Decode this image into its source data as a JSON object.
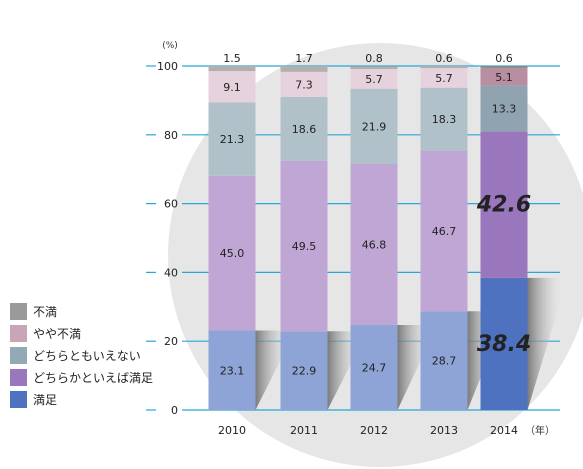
{
  "chart_data": {
    "type": "bar",
    "stacked": true,
    "y_unit_label": "(%)",
    "x_unit_label": "（年）",
    "ylim": [
      0,
      100
    ],
    "y_ticks": [
      "0",
      "20",
      "40",
      "60",
      "80",
      "100"
    ],
    "grid": true,
    "legend_placement": "left",
    "categories": [
      "2010",
      "2011",
      "2012",
      "2013",
      "2014"
    ],
    "series": [
      {
        "name": "満足",
        "color": "#8fa4d6",
        "highlight_color": "#4f72c0",
        "values": [
          23.1,
          22.9,
          24.7,
          28.7,
          38.4
        ],
        "labels": [
          "23.1",
          "22.9",
          "24.7",
          "28.7",
          "38.4"
        ]
      },
      {
        "name": "どちらかといえば満足",
        "color": "#c0a6d4",
        "highlight_color": "#9a76bd",
        "values": [
          45.0,
          49.5,
          46.8,
          46.7,
          42.6
        ],
        "labels": [
          "45.0",
          "49.5",
          "46.8",
          "46.7",
          "42.6"
        ]
      },
      {
        "name": "どちらともいえない",
        "color": "#b1c1c9",
        "highlight_color": "#8fa3b0",
        "values": [
          21.3,
          18.6,
          21.9,
          18.3,
          13.3
        ],
        "labels": [
          "21.3",
          "18.6",
          "21.9",
          "18.3",
          "13.3"
        ]
      },
      {
        "name": "やや不満",
        "color": "#e6d2dc",
        "highlight_color": "#b88fa1",
        "values": [
          9.1,
          7.3,
          5.7,
          5.7,
          5.1
        ],
        "labels": [
          "9.1",
          "7.3",
          "5.7",
          "5.7",
          "5.1"
        ]
      },
      {
        "name": "不満",
        "color": "#b0b0b0",
        "highlight_color": "#8c8c8c",
        "values": [
          1.5,
          1.7,
          0.8,
          0.6,
          0.6
        ],
        "labels": [
          "1.5",
          "1.7",
          "0.8",
          "0.6",
          "0.6"
        ]
      }
    ],
    "legend": [
      {
        "label": "不満",
        "color": "#9a9a9a"
      },
      {
        "label": "やや不満",
        "color": "#c8a6b8"
      },
      {
        "label": "どちらともいえない",
        "color": "#93a9b5"
      },
      {
        "label": "どちらかといえば満足",
        "color": "#9a76bd"
      },
      {
        "label": "満足",
        "color": "#4f72c0"
      }
    ],
    "highlight_category": "2014",
    "highlight_series_labels": [
      "満足",
      "どちらかといえば満足"
    ],
    "grid_color": "#2aa7d6",
    "background_circle_color": "#e6e6e6"
  }
}
